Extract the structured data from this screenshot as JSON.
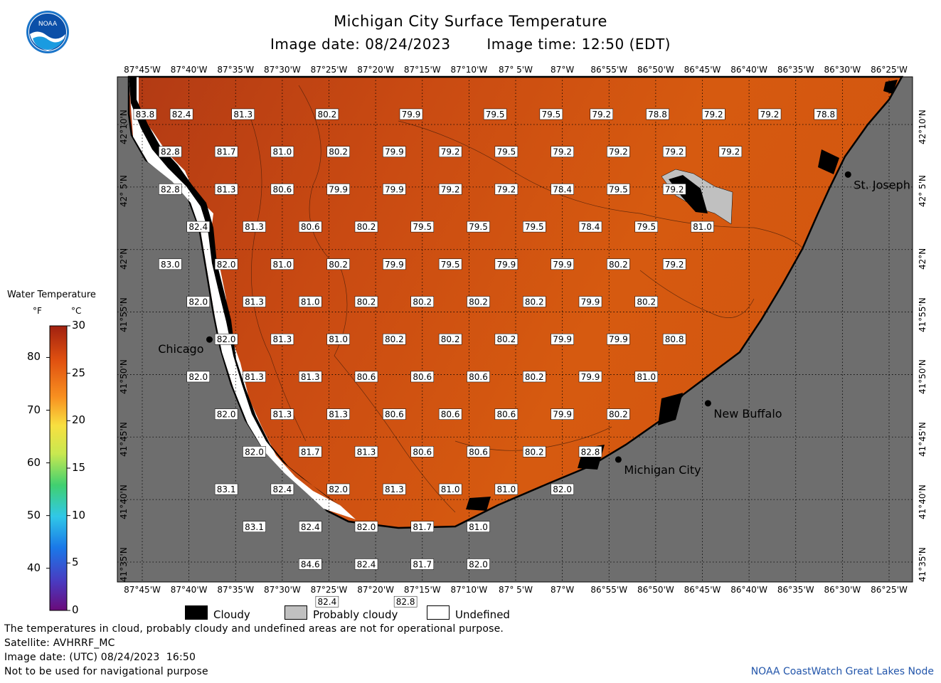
{
  "header": {
    "title": "Michigan City Surface Temperature",
    "image_date": "Image date: 08/24/2023",
    "image_time": "Image time: 12:50 (EDT)",
    "logo_text": "NOAA"
  },
  "map": {
    "lon_labels": [
      "87°45'W",
      "87°40'W",
      "87°35'W",
      "87°30'W",
      "87°25'W",
      "87°20'W",
      "87°15'W",
      "87°10'W",
      "87° 5'W",
      "87°W",
      "86°55'W",
      "86°50'W",
      "86°45'W",
      "86°40'W",
      "86°35'W",
      "86°30'W",
      "86°25'W"
    ],
    "lat_labels": [
      "42°10'N",
      "42° 5'N",
      "42°N",
      "41°55'N",
      "41°50'N",
      "41°45'N",
      "41°40'N",
      "41°35'N"
    ],
    "cities": [
      {
        "name": "Chicago",
        "lon": -87.63,
        "lat": 41.88,
        "label_side": "left"
      },
      {
        "name": "St. Joseph",
        "lon": -86.49,
        "lat": 42.1,
        "label_side": "right"
      },
      {
        "name": "New Buffalo",
        "lon": -86.74,
        "lat": 41.795,
        "label_side": "right"
      },
      {
        "name": "Michigan City",
        "lon": -86.9,
        "lat": 41.72,
        "label_side": "right"
      }
    ],
    "colors": {
      "land": "#6e6e6e",
      "water_warm": "#c84a12",
      "water_mid": "#d85a10",
      "cloudy": "#000000",
      "probably_cloudy": "#c0c0c0",
      "undefined": "#ffffff"
    },
    "temperature_points": [
      {
        "lon": -87.745,
        "lat": 42.18,
        "t": "83.8"
      },
      {
        "lon": -87.68,
        "lat": 42.18,
        "t": "82.4"
      },
      {
        "lon": -87.57,
        "lat": 42.18,
        "t": "81.3"
      },
      {
        "lon": -87.42,
        "lat": 42.18,
        "t": "80.2"
      },
      {
        "lon": -87.27,
        "lat": 42.18,
        "t": "79.9"
      },
      {
        "lon": -87.12,
        "lat": 42.18,
        "t": "79.5"
      },
      {
        "lon": -87.02,
        "lat": 42.18,
        "t": "79.5"
      },
      {
        "lon": -86.93,
        "lat": 42.18,
        "t": "79.2"
      },
      {
        "lon": -86.83,
        "lat": 42.18,
        "t": "78.8"
      },
      {
        "lon": -86.73,
        "lat": 42.18,
        "t": "79.2"
      },
      {
        "lon": -86.63,
        "lat": 42.18,
        "t": "79.2"
      },
      {
        "lon": -86.53,
        "lat": 42.18,
        "t": "78.8"
      },
      {
        "lon": -87.7,
        "lat": 42.13,
        "t": "82.8"
      },
      {
        "lon": -87.6,
        "lat": 42.13,
        "t": "81.7"
      },
      {
        "lon": -87.5,
        "lat": 42.13,
        "t": "81.0"
      },
      {
        "lon": -87.4,
        "lat": 42.13,
        "t": "80.2"
      },
      {
        "lon": -87.3,
        "lat": 42.13,
        "t": "79.9"
      },
      {
        "lon": -87.2,
        "lat": 42.13,
        "t": "79.2"
      },
      {
        "lon": -87.1,
        "lat": 42.13,
        "t": "79.5"
      },
      {
        "lon": -87.0,
        "lat": 42.13,
        "t": "79.2"
      },
      {
        "lon": -86.9,
        "lat": 42.13,
        "t": "79.2"
      },
      {
        "lon": -86.8,
        "lat": 42.13,
        "t": "79.2"
      },
      {
        "lon": -86.7,
        "lat": 42.13,
        "t": "79.2"
      },
      {
        "lon": -87.7,
        "lat": 42.08,
        "t": "82.8"
      },
      {
        "lon": -87.6,
        "lat": 42.08,
        "t": "81.3"
      },
      {
        "lon": -87.5,
        "lat": 42.08,
        "t": "80.6"
      },
      {
        "lon": -87.4,
        "lat": 42.08,
        "t": "79.9"
      },
      {
        "lon": -87.3,
        "lat": 42.08,
        "t": "79.9"
      },
      {
        "lon": -87.2,
        "lat": 42.08,
        "t": "79.2"
      },
      {
        "lon": -87.1,
        "lat": 42.08,
        "t": "79.2"
      },
      {
        "lon": -87.0,
        "lat": 42.08,
        "t": "78.4"
      },
      {
        "lon": -86.9,
        "lat": 42.08,
        "t": "79.5"
      },
      {
        "lon": -86.8,
        "lat": 42.08,
        "t": "79.2"
      },
      {
        "lon": -87.65,
        "lat": 42.03,
        "t": "82.4"
      },
      {
        "lon": -87.55,
        "lat": 42.03,
        "t": "81.3"
      },
      {
        "lon": -87.45,
        "lat": 42.03,
        "t": "80.6"
      },
      {
        "lon": -87.35,
        "lat": 42.03,
        "t": "80.2"
      },
      {
        "lon": -87.25,
        "lat": 42.03,
        "t": "79.5"
      },
      {
        "lon": -87.15,
        "lat": 42.03,
        "t": "79.5"
      },
      {
        "lon": -87.05,
        "lat": 42.03,
        "t": "79.5"
      },
      {
        "lon": -86.95,
        "lat": 42.03,
        "t": "78.4"
      },
      {
        "lon": -86.85,
        "lat": 42.03,
        "t": "79.5"
      },
      {
        "lon": -86.75,
        "lat": 42.03,
        "t": "81.0"
      },
      {
        "lon": -87.7,
        "lat": 41.98,
        "t": "83.0"
      },
      {
        "lon": -87.6,
        "lat": 41.98,
        "t": "82.0"
      },
      {
        "lon": -87.5,
        "lat": 41.98,
        "t": "81.0"
      },
      {
        "lon": -87.4,
        "lat": 41.98,
        "t": "80.2"
      },
      {
        "lon": -87.3,
        "lat": 41.98,
        "t": "79.9"
      },
      {
        "lon": -87.2,
        "lat": 41.98,
        "t": "79.5"
      },
      {
        "lon": -87.1,
        "lat": 41.98,
        "t": "79.9"
      },
      {
        "lon": -87.0,
        "lat": 41.98,
        "t": "79.9"
      },
      {
        "lon": -86.9,
        "lat": 41.98,
        "t": "80.2"
      },
      {
        "lon": -86.8,
        "lat": 41.98,
        "t": "79.2"
      },
      {
        "lon": -87.65,
        "lat": 41.93,
        "t": "82.0"
      },
      {
        "lon": -87.55,
        "lat": 41.93,
        "t": "81.3"
      },
      {
        "lon": -87.45,
        "lat": 41.93,
        "t": "81.0"
      },
      {
        "lon": -87.35,
        "lat": 41.93,
        "t": "80.2"
      },
      {
        "lon": -87.25,
        "lat": 41.93,
        "t": "80.2"
      },
      {
        "lon": -87.15,
        "lat": 41.93,
        "t": "80.2"
      },
      {
        "lon": -87.05,
        "lat": 41.93,
        "t": "80.2"
      },
      {
        "lon": -86.95,
        "lat": 41.93,
        "t": "79.9"
      },
      {
        "lon": -86.85,
        "lat": 41.93,
        "t": "80.2"
      },
      {
        "lon": -87.6,
        "lat": 41.88,
        "t": "82.0"
      },
      {
        "lon": -87.5,
        "lat": 41.88,
        "t": "81.3"
      },
      {
        "lon": -87.4,
        "lat": 41.88,
        "t": "81.0"
      },
      {
        "lon": -87.3,
        "lat": 41.88,
        "t": "80.2"
      },
      {
        "lon": -87.2,
        "lat": 41.88,
        "t": "80.2"
      },
      {
        "lon": -87.1,
        "lat": 41.88,
        "t": "80.2"
      },
      {
        "lon": -87.0,
        "lat": 41.88,
        "t": "79.9"
      },
      {
        "lon": -86.9,
        "lat": 41.88,
        "t": "79.9"
      },
      {
        "lon": -86.8,
        "lat": 41.88,
        "t": "80.8"
      },
      {
        "lon": -87.65,
        "lat": 41.83,
        "t": "82.0"
      },
      {
        "lon": -87.55,
        "lat": 41.83,
        "t": "81.3"
      },
      {
        "lon": -87.45,
        "lat": 41.83,
        "t": "81.3"
      },
      {
        "lon": -87.35,
        "lat": 41.83,
        "t": "80.6"
      },
      {
        "lon": -87.25,
        "lat": 41.83,
        "t": "80.6"
      },
      {
        "lon": -87.15,
        "lat": 41.83,
        "t": "80.6"
      },
      {
        "lon": -87.05,
        "lat": 41.83,
        "t": "80.2"
      },
      {
        "lon": -86.95,
        "lat": 41.83,
        "t": "79.9"
      },
      {
        "lon": -86.85,
        "lat": 41.83,
        "t": "81.0"
      },
      {
        "lon": -87.6,
        "lat": 41.78,
        "t": "82.0"
      },
      {
        "lon": -87.5,
        "lat": 41.78,
        "t": "81.3"
      },
      {
        "lon": -87.4,
        "lat": 41.78,
        "t": "81.3"
      },
      {
        "lon": -87.3,
        "lat": 41.78,
        "t": "80.6"
      },
      {
        "lon": -87.2,
        "lat": 41.78,
        "t": "80.6"
      },
      {
        "lon": -87.1,
        "lat": 41.78,
        "t": "80.6"
      },
      {
        "lon": -87.0,
        "lat": 41.78,
        "t": "79.9"
      },
      {
        "lon": -86.9,
        "lat": 41.78,
        "t": "80.2"
      },
      {
        "lon": -87.55,
        "lat": 41.73,
        "t": "82.0"
      },
      {
        "lon": -87.45,
        "lat": 41.73,
        "t": "81.7"
      },
      {
        "lon": -87.35,
        "lat": 41.73,
        "t": "81.3"
      },
      {
        "lon": -87.25,
        "lat": 41.73,
        "t": "80.6"
      },
      {
        "lon": -87.15,
        "lat": 41.73,
        "t": "80.6"
      },
      {
        "lon": -87.05,
        "lat": 41.73,
        "t": "80.2"
      },
      {
        "lon": -86.95,
        "lat": 41.73,
        "t": "82.8"
      },
      {
        "lon": -87.6,
        "lat": 41.68,
        "t": "83.1"
      },
      {
        "lon": -87.5,
        "lat": 41.68,
        "t": "82.4"
      },
      {
        "lon": -87.4,
        "lat": 41.68,
        "t": "82.0"
      },
      {
        "lon": -87.3,
        "lat": 41.68,
        "t": "81.3"
      },
      {
        "lon": -87.2,
        "lat": 41.68,
        "t": "81.0"
      },
      {
        "lon": -87.1,
        "lat": 41.68,
        "t": "81.0"
      },
      {
        "lon": -87.0,
        "lat": 41.68,
        "t": "82.0"
      },
      {
        "lon": -87.55,
        "lat": 41.63,
        "t": "83.1"
      },
      {
        "lon": -87.45,
        "lat": 41.63,
        "t": "82.4"
      },
      {
        "lon": -87.35,
        "lat": 41.63,
        "t": "82.0"
      },
      {
        "lon": -87.25,
        "lat": 41.63,
        "t": "81.7"
      },
      {
        "lon": -87.15,
        "lat": 41.63,
        "t": "81.0"
      },
      {
        "lon": -87.45,
        "lat": 41.58,
        "t": "84.6"
      },
      {
        "lon": -87.35,
        "lat": 41.58,
        "t": "82.4"
      },
      {
        "lon": -87.25,
        "lat": 41.58,
        "t": "81.7"
      },
      {
        "lon": -87.15,
        "lat": 41.58,
        "t": "82.0"
      },
      {
        "lon": -87.42,
        "lat": 41.53,
        "t": "82.4"
      },
      {
        "lon": -87.28,
        "lat": 41.53,
        "t": "82.8"
      }
    ]
  },
  "legend": {
    "title": "Water Temperature",
    "unit_f": "°F",
    "unit_c": "°C",
    "fahrenheit_ticks": [
      "80",
      "70",
      "60",
      "50",
      "40"
    ],
    "celsius_ticks": [
      "30",
      "25",
      "20",
      "15",
      "10",
      "5",
      "0"
    ],
    "key": [
      {
        "label": "Cloudy",
        "color": "#000000"
      },
      {
        "label": "Probably cloudy",
        "color": "#c0c0c0"
      },
      {
        "label": "Undefined",
        "color": "#ffffff"
      }
    ]
  },
  "footer": {
    "note": "The temperatures in cloud, probably cloudy and undefined areas are not for operational purpose.",
    "satellite": "Satellite: AVHRRF_MC",
    "utc_date": "Image date: (UTC) 08/24/2023  16:50",
    "nav_warning": "Not to be used for navigational purpose",
    "credit": "NOAA CoastWatch Great Lakes Node"
  }
}
